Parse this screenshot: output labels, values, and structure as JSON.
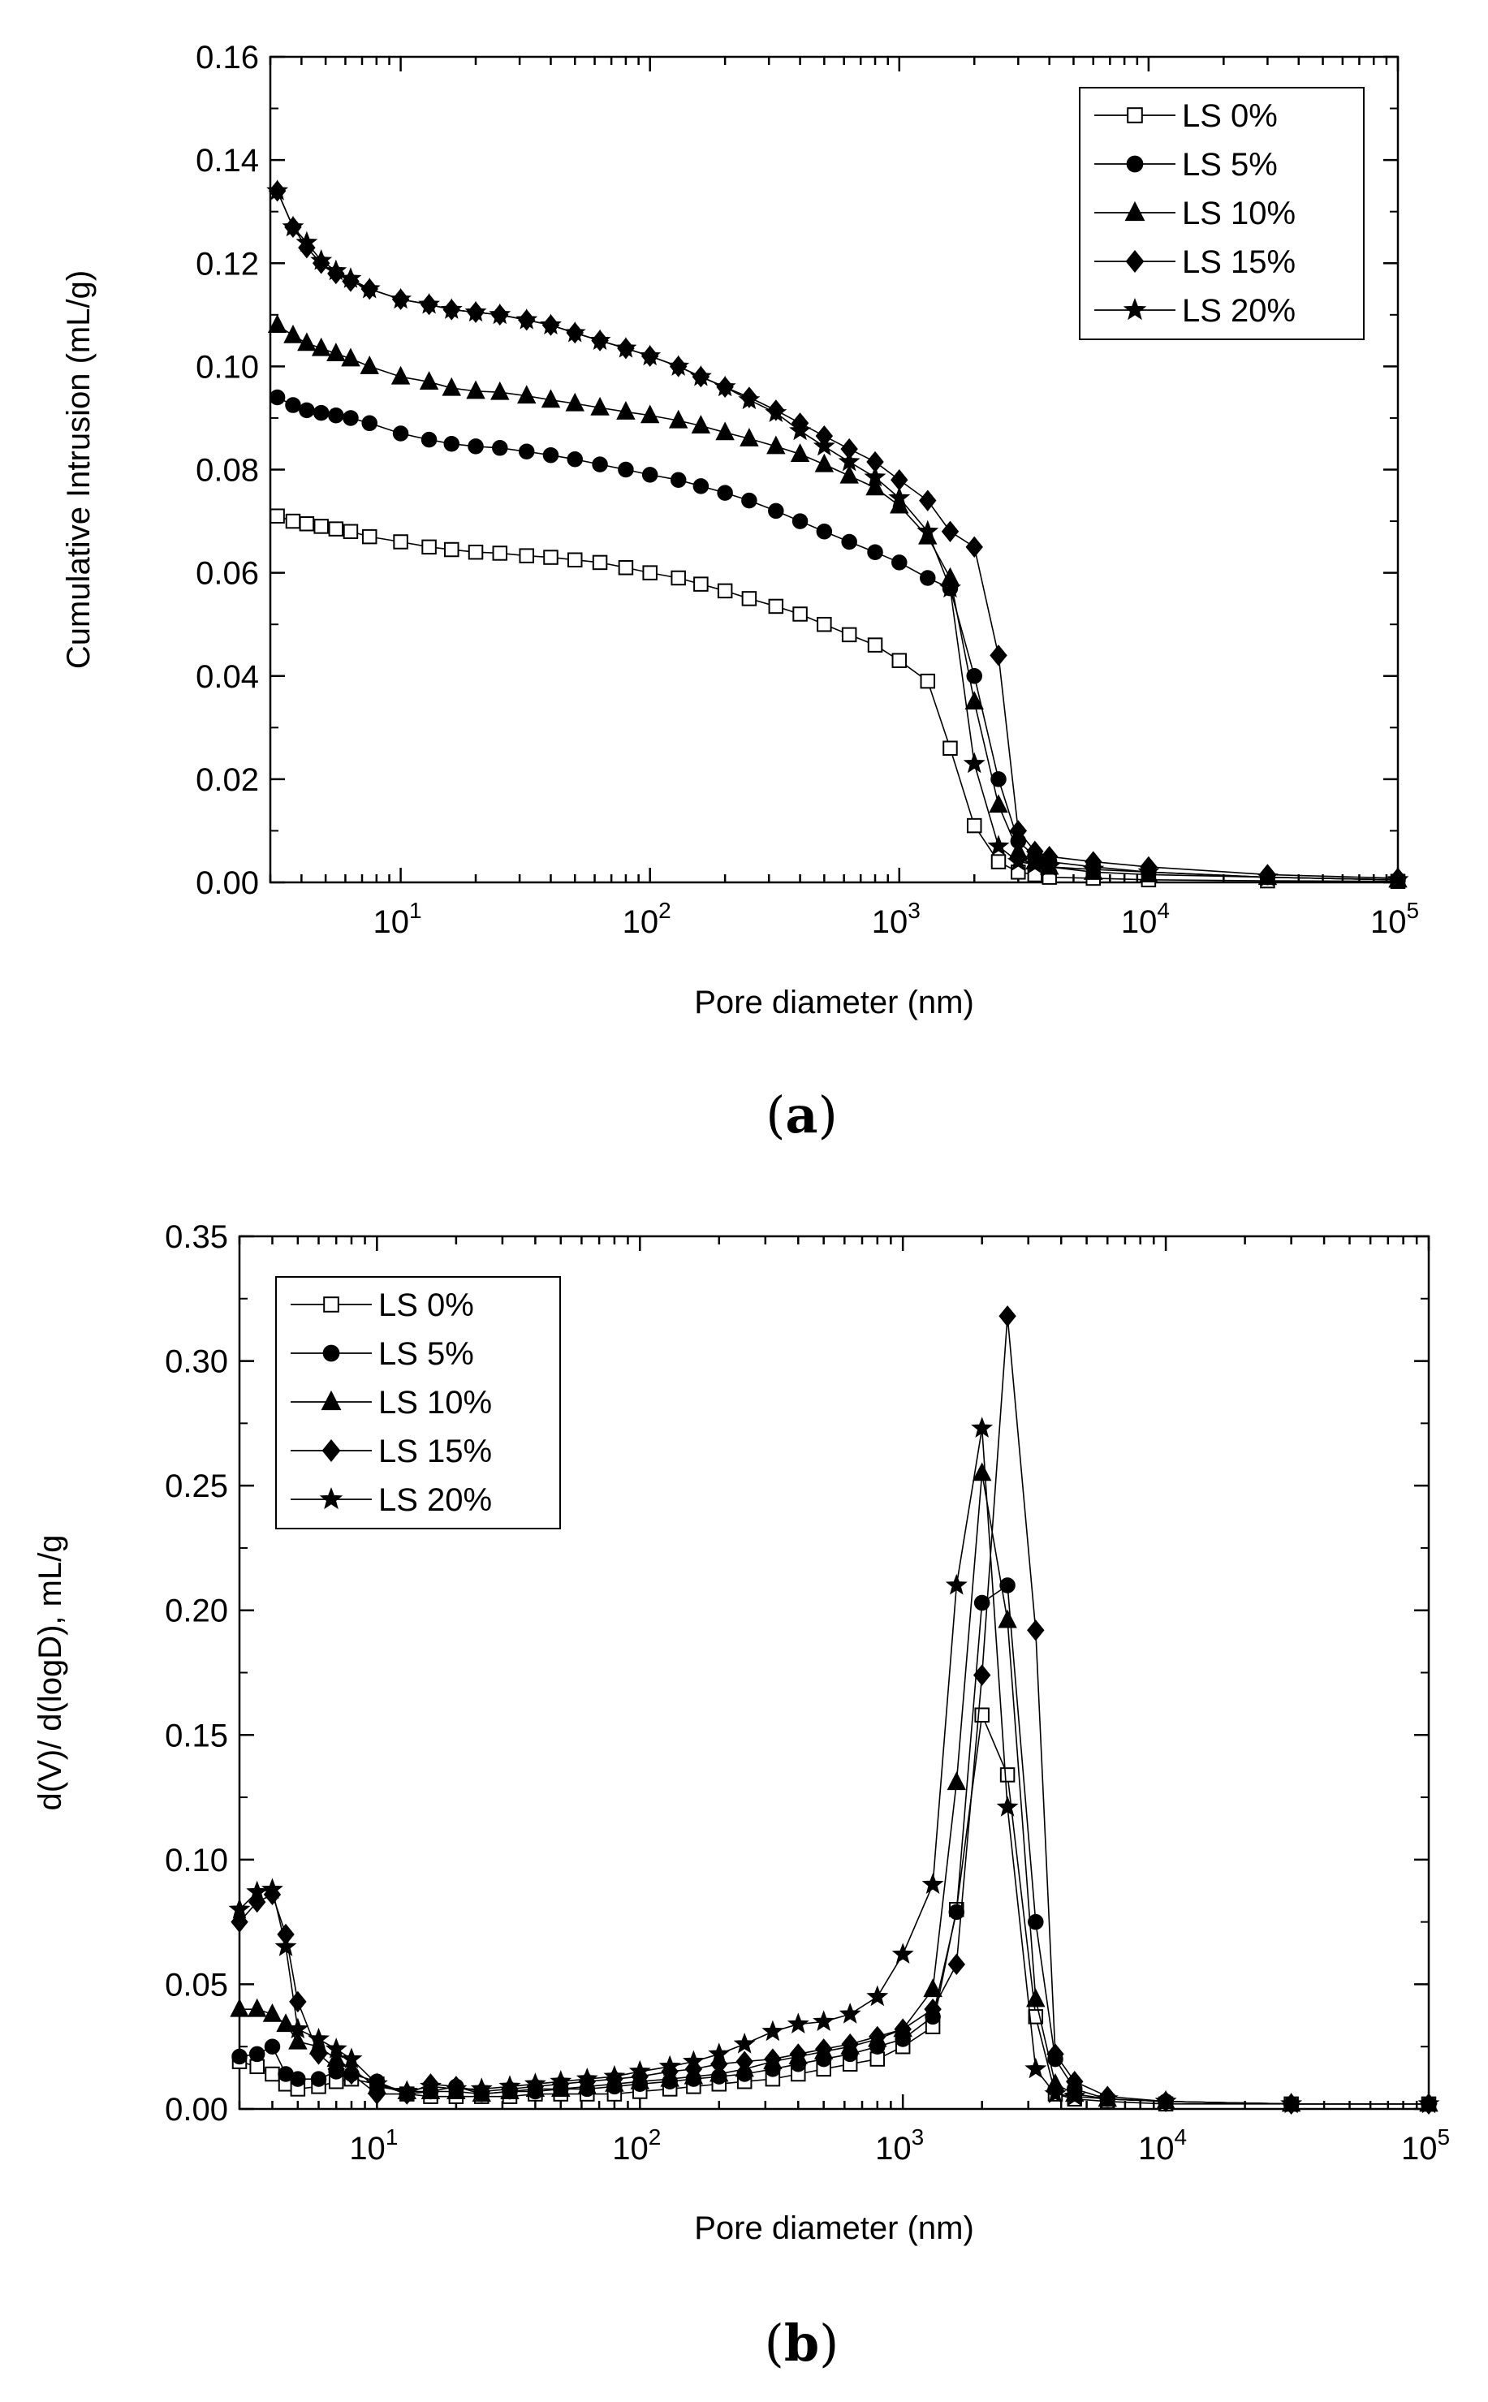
{
  "chart_data": [
    {
      "type": "line",
      "panel_label": "a",
      "xlabel": "Pore diameter (nm)",
      "ylabel": "Cumulative Intrusion (mL/g)",
      "xscale": "log",
      "xlim": [
        3,
        100000
      ],
      "ylim": [
        0,
        0.16
      ],
      "yticks": [
        "0.00",
        "0.02",
        "0.04",
        "0.06",
        "0.08",
        "0.10",
        "0.12",
        "0.14",
        "0.16"
      ],
      "xticks": [
        {
          "base": "10",
          "exp": "1"
        },
        {
          "base": "10",
          "exp": "2"
        },
        {
          "base": "10",
          "exp": "3"
        },
        {
          "base": "10",
          "exp": "4"
        },
        {
          "base": "10",
          "exp": "5"
        }
      ],
      "legend_position": "top-right",
      "series": [
        {
          "name": "LS 0%",
          "marker": "open-square",
          "x": [
            3.2,
            3.7,
            4.2,
            4.8,
            5.5,
            6.3,
            7.5,
            10,
            13,
            16,
            20,
            25,
            32,
            40,
            50,
            63,
            80,
            100,
            130,
            160,
            200,
            250,
            320,
            400,
            500,
            630,
            800,
            1000,
            1300,
            1600,
            2000,
            2500,
            3000,
            3500,
            4000,
            6000,
            10000,
            30000,
            100000
          ],
          "y": [
            0.071,
            0.07,
            0.0695,
            0.069,
            0.0685,
            0.068,
            0.067,
            0.066,
            0.065,
            0.0645,
            0.064,
            0.0638,
            0.0633,
            0.063,
            0.0625,
            0.062,
            0.061,
            0.06,
            0.059,
            0.0578,
            0.0565,
            0.055,
            0.0535,
            0.052,
            0.05,
            0.048,
            0.046,
            0.043,
            0.039,
            0.026,
            0.011,
            0.004,
            0.002,
            0.0015,
            0.001,
            0.0008,
            0.0005,
            0.0003,
            0.0002
          ]
        },
        {
          "name": "LS 5%",
          "marker": "filled-circle",
          "x": [
            3.2,
            3.7,
            4.2,
            4.8,
            5.5,
            6.3,
            7.5,
            10,
            13,
            16,
            20,
            25,
            32,
            40,
            50,
            63,
            80,
            100,
            130,
            160,
            200,
            250,
            320,
            400,
            500,
            630,
            800,
            1000,
            1300,
            1600,
            2000,
            2500,
            3000,
            3500,
            4000,
            6000,
            10000,
            30000,
            100000
          ],
          "y": [
            0.094,
            0.0925,
            0.0915,
            0.091,
            0.0905,
            0.09,
            0.089,
            0.087,
            0.0858,
            0.085,
            0.0845,
            0.0842,
            0.0835,
            0.0828,
            0.082,
            0.081,
            0.08,
            0.079,
            0.078,
            0.0768,
            0.0755,
            0.074,
            0.072,
            0.07,
            0.068,
            0.066,
            0.064,
            0.062,
            0.059,
            0.057,
            0.04,
            0.02,
            0.008,
            0.005,
            0.004,
            0.003,
            0.002,
            0.001,
            0.0005
          ]
        },
        {
          "name": "LS 10%",
          "marker": "filled-triangle",
          "x": [
            3.2,
            3.7,
            4.2,
            4.8,
            5.5,
            6.3,
            7.5,
            10,
            13,
            16,
            20,
            25,
            32,
            40,
            50,
            63,
            80,
            100,
            130,
            160,
            200,
            250,
            320,
            400,
            500,
            630,
            800,
            1000,
            1300,
            1600,
            2000,
            2500,
            3000,
            3500,
            4000,
            6000,
            10000,
            30000,
            100000
          ],
          "y": [
            0.108,
            0.106,
            0.1045,
            0.1035,
            0.1025,
            0.1015,
            0.1,
            0.098,
            0.097,
            0.0958,
            0.0952,
            0.095,
            0.0943,
            0.0935,
            0.0928,
            0.092,
            0.0912,
            0.0905,
            0.0895,
            0.0885,
            0.0872,
            0.086,
            0.0845,
            0.083,
            0.081,
            0.0788,
            0.0765,
            0.073,
            0.067,
            0.059,
            0.035,
            0.015,
            0.006,
            0.004,
            0.003,
            0.002,
            0.0015,
            0.001,
            0.0005
          ]
        },
        {
          "name": "LS 15%",
          "marker": "filled-diamond",
          "x": [
            3.2,
            3.7,
            4.2,
            4.8,
            5.5,
            6.3,
            7.5,
            10,
            13,
            16,
            20,
            25,
            32,
            40,
            50,
            63,
            80,
            100,
            130,
            160,
            200,
            250,
            320,
            400,
            500,
            630,
            800,
            1000,
            1300,
            1600,
            2000,
            2500,
            3000,
            3500,
            4000,
            6000,
            10000,
            30000,
            100000
          ],
          "y": [
            0.134,
            0.127,
            0.123,
            0.12,
            0.118,
            0.1165,
            0.115,
            0.113,
            0.112,
            0.111,
            0.1105,
            0.11,
            0.109,
            0.108,
            0.1065,
            0.105,
            0.1035,
            0.102,
            0.1,
            0.098,
            0.096,
            0.094,
            0.0915,
            0.089,
            0.0865,
            0.084,
            0.0815,
            0.078,
            0.074,
            0.068,
            0.065,
            0.044,
            0.01,
            0.006,
            0.005,
            0.004,
            0.003,
            0.0015,
            0.0008
          ]
        },
        {
          "name": "LS 20%",
          "marker": "filled-star",
          "x": [
            3.2,
            3.7,
            4.2,
            4.8,
            5.5,
            6.3,
            7.5,
            10,
            13,
            16,
            20,
            25,
            32,
            40,
            50,
            63,
            80,
            100,
            130,
            160,
            200,
            250,
            320,
            400,
            500,
            630,
            800,
            1000,
            1300,
            1600,
            2000,
            2500,
            3000,
            3500,
            4000,
            6000,
            10000,
            30000,
            100000
          ],
          "y": [
            0.134,
            0.127,
            0.124,
            0.1205,
            0.1185,
            0.117,
            0.115,
            0.113,
            0.112,
            0.111,
            0.1105,
            0.11,
            0.109,
            0.108,
            0.1065,
            0.105,
            0.1035,
            0.102,
            0.1,
            0.098,
            0.096,
            0.0935,
            0.091,
            0.0875,
            0.0845,
            0.0815,
            0.0785,
            0.0745,
            0.068,
            0.057,
            0.023,
            0.007,
            0.004,
            0.0035,
            0.003,
            0.0025,
            0.002,
            0.001,
            0.0005
          ]
        }
      ]
    },
    {
      "type": "line",
      "panel_label": "b",
      "xlabel": "Pore diameter (nm)",
      "ylabel": "d(V)/ d(logD), mL/g",
      "xscale": "log",
      "xlim": [
        3,
        100000
      ],
      "ylim": [
        0,
        0.35
      ],
      "yticks": [
        "0.00",
        "0.05",
        "0.10",
        "0.15",
        "0.20",
        "0.25",
        "0.30",
        "0.35"
      ],
      "xticks": [
        {
          "base": "10",
          "exp": "1"
        },
        {
          "base": "10",
          "exp": "2"
        },
        {
          "base": "10",
          "exp": "3"
        },
        {
          "base": "10",
          "exp": "4"
        },
        {
          "base": "10",
          "exp": "5"
        }
      ],
      "legend_position": "top-left",
      "series": [
        {
          "name": "LS 0%",
          "marker": "open-square",
          "x": [
            3,
            3.5,
            4,
            4.5,
            5,
            6,
            7,
            8,
            10,
            13,
            16,
            20,
            25,
            32,
            40,
            50,
            63,
            80,
            100,
            130,
            160,
            200,
            250,
            320,
            400,
            500,
            630,
            800,
            1000,
            1300,
            1600,
            2000,
            2500,
            3200,
            3800,
            4500,
            6000,
            10000,
            30000,
            100000
          ],
          "y": [
            0.019,
            0.017,
            0.014,
            0.01,
            0.008,
            0.009,
            0.011,
            0.012,
            0.01,
            0.006,
            0.005,
            0.005,
            0.005,
            0.005,
            0.006,
            0.006,
            0.006,
            0.006,
            0.007,
            0.008,
            0.009,
            0.01,
            0.011,
            0.012,
            0.014,
            0.016,
            0.018,
            0.02,
            0.025,
            0.033,
            0.08,
            0.158,
            0.134,
            0.037,
            0.006,
            0.004,
            0.003,
            0.002,
            0.002,
            0.002
          ]
        },
        {
          "name": "LS 5%",
          "marker": "filled-circle",
          "x": [
            3,
            3.5,
            4,
            4.5,
            5,
            6,
            7,
            8,
            10,
            13,
            16,
            20,
            25,
            32,
            40,
            50,
            63,
            80,
            100,
            130,
            160,
            200,
            250,
            320,
            400,
            500,
            630,
            800,
            1000,
            1300,
            1600,
            2000,
            2500,
            3200,
            3800,
            4500,
            6000,
            10000,
            30000,
            100000
          ],
          "y": [
            0.021,
            0.022,
            0.025,
            0.014,
            0.012,
            0.012,
            0.015,
            0.014,
            0.011,
            0.006,
            0.007,
            0.009,
            0.006,
            0.007,
            0.007,
            0.008,
            0.008,
            0.009,
            0.01,
            0.011,
            0.012,
            0.013,
            0.014,
            0.016,
            0.018,
            0.02,
            0.022,
            0.025,
            0.028,
            0.037,
            0.079,
            0.203,
            0.21,
            0.075,
            0.02,
            0.008,
            0.004,
            0.003,
            0.002,
            0.002
          ]
        },
        {
          "name": "LS 10%",
          "marker": "filled-triangle",
          "x": [
            3,
            3.5,
            4,
            4.5,
            5,
            6,
            7,
            8,
            10,
            13,
            16,
            20,
            25,
            32,
            40,
            50,
            63,
            80,
            100,
            130,
            160,
            200,
            250,
            320,
            400,
            500,
            630,
            800,
            1000,
            1300,
            1600,
            2000,
            2500,
            3200,
            3800,
            4500,
            6000,
            10000,
            30000,
            100000
          ],
          "y": [
            0.04,
            0.04,
            0.038,
            0.034,
            0.027,
            0.025,
            0.02,
            0.016,
            0.009,
            0.007,
            0.007,
            0.007,
            0.006,
            0.007,
            0.008,
            0.008,
            0.009,
            0.01,
            0.011,
            0.012,
            0.013,
            0.014,
            0.016,
            0.019,
            0.021,
            0.023,
            0.025,
            0.028,
            0.032,
            0.048,
            0.131,
            0.255,
            0.196,
            0.044,
            0.01,
            0.006,
            0.004,
            0.003,
            0.002,
            0.002
          ]
        },
        {
          "name": "LS 15%",
          "marker": "filled-diamond",
          "x": [
            3,
            3.5,
            4,
            4.5,
            5,
            6,
            7,
            8,
            10,
            13,
            16,
            20,
            25,
            32,
            40,
            50,
            63,
            80,
            100,
            130,
            160,
            200,
            250,
            320,
            400,
            500,
            630,
            800,
            1000,
            1300,
            1600,
            2000,
            2500,
            3200,
            3800,
            4500,
            6000,
            10000,
            30000,
            100000
          ],
          "y": [
            0.075,
            0.083,
            0.086,
            0.07,
            0.043,
            0.022,
            0.016,
            0.014,
            0.006,
            0.006,
            0.01,
            0.009,
            0.007,
            0.008,
            0.009,
            0.01,
            0.011,
            0.012,
            0.013,
            0.015,
            0.016,
            0.018,
            0.019,
            0.02,
            0.022,
            0.024,
            0.026,
            0.029,
            0.032,
            0.04,
            0.058,
            0.174,
            0.318,
            0.192,
            0.022,
            0.011,
            0.005,
            0.003,
            0.002,
            0.002
          ]
        },
        {
          "name": "LS 20%",
          "marker": "filled-star",
          "x": [
            3,
            3.5,
            4,
            4.5,
            5,
            6,
            7,
            8,
            10,
            13,
            16,
            20,
            25,
            32,
            40,
            50,
            63,
            80,
            100,
            130,
            160,
            200,
            250,
            320,
            400,
            500,
            630,
            800,
            1000,
            1300,
            1600,
            2000,
            2500,
            3200,
            3800,
            4500,
            6000,
            10000,
            30000,
            100000
          ],
          "y": [
            0.08,
            0.087,
            0.088,
            0.065,
            0.032,
            0.028,
            0.024,
            0.02,
            0.01,
            0.007,
            0.009,
            0.008,
            0.008,
            0.009,
            0.01,
            0.011,
            0.012,
            0.013,
            0.015,
            0.017,
            0.019,
            0.022,
            0.026,
            0.031,
            0.034,
            0.035,
            0.038,
            0.045,
            0.062,
            0.09,
            0.21,
            0.273,
            0.121,
            0.016,
            0.006,
            0.005,
            0.004,
            0.003,
            0.002,
            0.002
          ]
        }
      ]
    }
  ]
}
